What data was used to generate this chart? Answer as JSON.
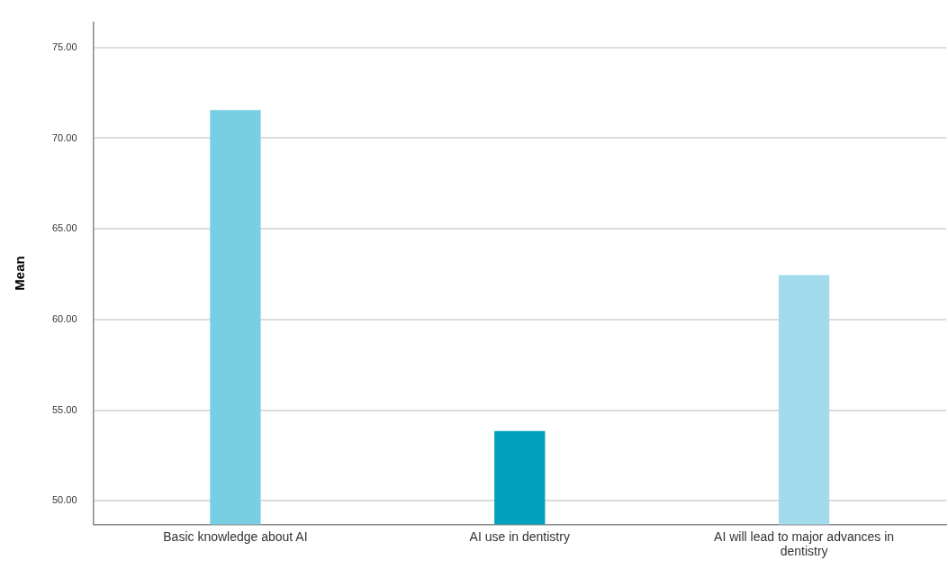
{
  "chart_data": {
    "type": "bar",
    "ylabel": "Mean",
    "categories": [
      "Basic knowledge about AI",
      "AI use in dentistry",
      "AI will lead to major advances in dentistry"
    ],
    "values": [
      71.55,
      53.85,
      62.45
    ],
    "colors": [
      "#78cfe3",
      "#00a1bc",
      "#a1dbec"
    ],
    "ylim": [
      48.7,
      76.4
    ],
    "yticks": [
      {
        "value": 50,
        "label": "50.00"
      },
      {
        "value": 55,
        "label": "55.00"
      },
      {
        "value": 60,
        "label": "60.00"
      },
      {
        "value": 65,
        "label": "65.00"
      },
      {
        "value": 70,
        "label": "70.00"
      },
      {
        "value": 75,
        "label": "75.00"
      }
    ],
    "grid": "y"
  }
}
